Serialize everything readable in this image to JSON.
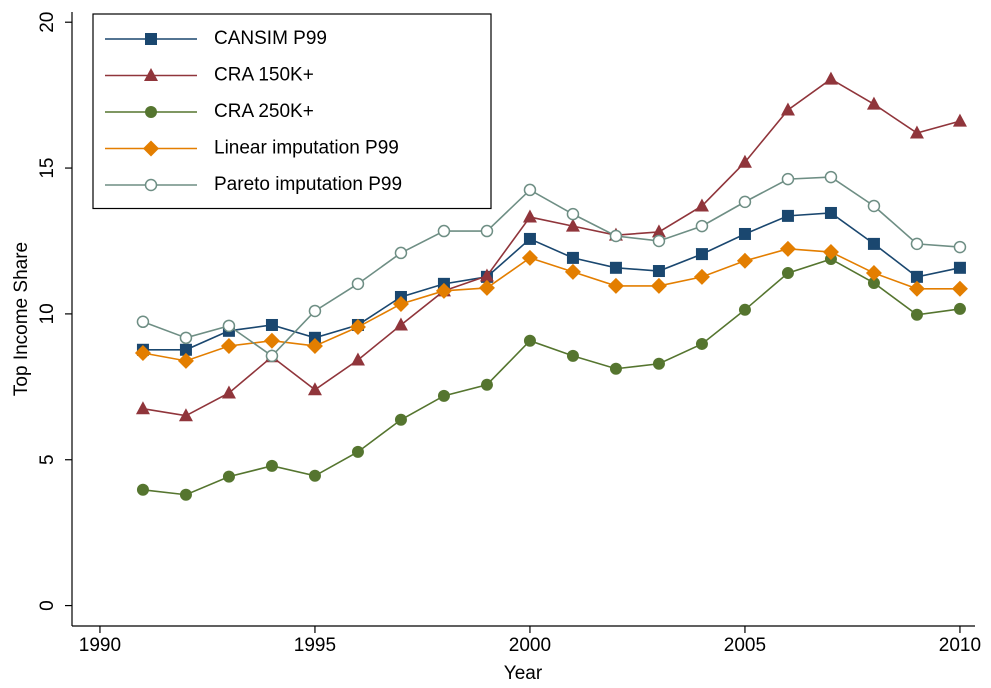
{
  "chart_data": {
    "type": "line",
    "xlabel": "Year",
    "ylabel": "Top Income Share",
    "x": [
      1991,
      1992,
      1993,
      1994,
      1995,
      1996,
      1997,
      1998,
      1999,
      2000,
      2001,
      2002,
      2003,
      2004,
      2005,
      2006,
      2007,
      2008,
      2009,
      2010
    ],
    "xlim": [
      1989.35,
      2010.35
    ],
    "xticks": [
      1990,
      1995,
      2000,
      2005,
      2010
    ],
    "ylim": [
      -0.7,
      20.35
    ],
    "yticks": [
      0,
      5,
      10,
      15,
      20
    ],
    "legend": "top-left",
    "grid": false,
    "series": [
      {
        "name": "CANSIM P99",
        "color": "#1a476f",
        "marker": "square",
        "values": [
          8.77,
          8.77,
          9.42,
          9.62,
          9.18,
          9.62,
          10.58,
          11.03,
          11.27,
          12.57,
          11.92,
          11.58,
          11.47,
          12.05,
          12.74,
          13.36,
          13.46,
          12.4,
          11.27,
          11.58
        ]
      },
      {
        "name": "CRA 150K+",
        "color": "#90353b",
        "marker": "triangle",
        "values": [
          6.75,
          6.51,
          7.29,
          8.53,
          7.4,
          8.42,
          9.62,
          10.79,
          11.3,
          13.32,
          13.01,
          12.7,
          12.81,
          13.7,
          15.2,
          16.99,
          18.05,
          17.19,
          16.2,
          16.61
        ]
      },
      {
        "name": "CRA 250K+",
        "color": "#55752f",
        "marker": "circle",
        "values": [
          3.97,
          3.8,
          4.42,
          4.79,
          4.45,
          5.27,
          6.37,
          7.19,
          7.57,
          9.08,
          8.56,
          8.12,
          8.29,
          8.97,
          10.14,
          11.4,
          11.88,
          11.06,
          9.97,
          10.17
        ]
      },
      {
        "name": "Linear imputation P99",
        "color": "#e37e00",
        "marker": "diamond",
        "values": [
          8.66,
          8.39,
          8.9,
          9.08,
          8.9,
          9.55,
          10.34,
          10.79,
          10.89,
          11.92,
          11.44,
          10.96,
          10.96,
          11.27,
          11.82,
          12.23,
          12.12,
          11.4,
          10.86,
          10.86
        ]
      },
      {
        "name": "Pareto imputation P99",
        "color": "#6e8e84",
        "marker": "hollow-circle",
        "values": [
          9.73,
          9.18,
          9.59,
          8.56,
          10.1,
          11.03,
          12.09,
          12.84,
          12.84,
          14.25,
          13.42,
          12.67,
          12.5,
          13.01,
          13.84,
          14.62,
          14.69,
          13.7,
          12.4,
          12.29
        ]
      }
    ]
  }
}
